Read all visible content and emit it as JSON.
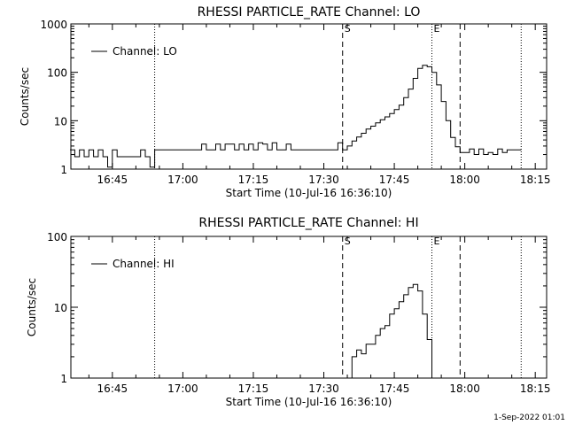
{
  "footer_date": "1-Sep-2022 01:01",
  "chart_data": [
    {
      "type": "line",
      "title": "RHESSI PARTICLE_RATE Channel: LO",
      "xlabel": "Start Time (10-Jul-16 16:36:10)",
      "ylabel": "Counts/sec",
      "yscale": "log",
      "ylim": [
        1,
        1000
      ],
      "yticks": [
        "1",
        "10",
        "100",
        "1000"
      ],
      "xticks": [
        "16:45",
        "17:00",
        "17:15",
        "17:30",
        "17:45",
        "18:00",
        "18:15"
      ],
      "legend": {
        "entry": "Channel: LO",
        "placement": "top-left"
      },
      "markers": [
        {
          "time": "16:54",
          "style": "dotted",
          "label": ""
        },
        {
          "time": "17:34",
          "style": "dashed",
          "label": "S"
        },
        {
          "time": "17:53",
          "style": "dotted",
          "label": "E"
        },
        {
          "time": "17:59",
          "style": "dashed",
          "label": ""
        },
        {
          "time": "18:12",
          "style": "dotted",
          "label": ""
        }
      ],
      "series": [
        {
          "x": [
            "16:36",
            "16:37",
            "16:38",
            "16:39",
            "16:40",
            "16:41",
            "16:42",
            "16:43",
            "16:44",
            "16:45",
            "16:46",
            "16:47",
            "16:48",
            "16:49",
            "16:50",
            "16:51",
            "16:52",
            "16:53",
            "16:54",
            "16:55",
            "16:56",
            "16:57",
            "16:58",
            "16:59",
            "17:00",
            "17:01",
            "17:02",
            "17:03",
            "17:04",
            "17:05",
            "17:06",
            "17:07",
            "17:08",
            "17:09",
            "17:10",
            "17:11",
            "17:12",
            "17:13",
            "17:14",
            "17:15",
            "17:16",
            "17:17",
            "17:18",
            "17:19",
            "17:20",
            "17:21",
            "17:22",
            "17:23",
            "17:24",
            "17:25",
            "17:26",
            "17:27",
            "17:28",
            "17:29",
            "17:30",
            "17:31",
            "17:32",
            "17:33",
            "17:34",
            "17:35",
            "17:36",
            "17:37",
            "17:38",
            "17:39",
            "17:40",
            "17:41",
            "17:42",
            "17:43",
            "17:44",
            "17:45",
            "17:46",
            "17:47",
            "17:48",
            "17:49",
            "17:50",
            "17:51",
            "17:52",
            "17:53",
            "17:54",
            "17:55",
            "17:56",
            "17:57",
            "17:58",
            "17:59",
            "18:00",
            "18:01",
            "18:02",
            "18:03",
            "18:04",
            "18:05",
            "18:06",
            "18:07",
            "18:08",
            "18:09",
            "18:10",
            "18:11",
            "18:12"
          ],
          "y": [
            2.5,
            1.8,
            2.5,
            1.8,
            2.5,
            1.8,
            2.5,
            1.8,
            1.1,
            2.5,
            1.8,
            1.8,
            1.8,
            1.8,
            1.8,
            2.5,
            1.8,
            1.1,
            2.5,
            2.5,
            2.5,
            2.5,
            2.5,
            2.5,
            2.5,
            2.5,
            2.5,
            2.5,
            3.3,
            2.5,
            2.5,
            3.3,
            2.5,
            3.3,
            3.3,
            2.5,
            3.3,
            2.5,
            3.3,
            2.5,
            3.5,
            3.3,
            2.5,
            3.5,
            2.5,
            2.5,
            3.3,
            2.5,
            2.5,
            2.5,
            2.5,
            2.5,
            2.5,
            2.5,
            2.5,
            2.5,
            2.5,
            3.5,
            2.5,
            3,
            3.8,
            4.6,
            5.5,
            6.7,
            7.7,
            9,
            10.5,
            12,
            14,
            17,
            21,
            30,
            45,
            75,
            120,
            140,
            130,
            100,
            55,
            25,
            10,
            4.5,
            2.9,
            2.2,
            2.2,
            2.6,
            2,
            2.6,
            2,
            2.2,
            2,
            2.6,
            2.2,
            2.5,
            2.5,
            2.5,
            2.5
          ]
        }
      ]
    },
    {
      "type": "line",
      "title": "RHESSI PARTICLE_RATE Channel: HI",
      "xlabel": "Start Time (10-Jul-16 16:36:10)",
      "ylabel": "Counts/sec",
      "yscale": "log",
      "ylim": [
        1,
        100
      ],
      "yticks": [
        "1",
        "10",
        "100"
      ],
      "xticks": [
        "16:45",
        "17:00",
        "17:15",
        "17:30",
        "17:45",
        "18:00",
        "18:15"
      ],
      "legend": {
        "entry": "Channel: HI",
        "placement": "top-left"
      },
      "markers": [
        {
          "time": "16:54",
          "style": "dotted",
          "label": ""
        },
        {
          "time": "17:34",
          "style": "dashed",
          "label": "S"
        },
        {
          "time": "17:53",
          "style": "dotted",
          "label": "E"
        },
        {
          "time": "17:59",
          "style": "dashed",
          "label": ""
        },
        {
          "time": "18:12",
          "style": "dotted",
          "label": ""
        }
      ],
      "series": [
        {
          "x": [
            "17:35",
            "17:36",
            "17:37",
            "17:38",
            "17:39",
            "17:40",
            "17:41",
            "17:42",
            "17:43",
            "17:44",
            "17:45",
            "17:46",
            "17:47",
            "17:48",
            "17:49",
            "17:50",
            "17:51",
            "17:52",
            "17:53"
          ],
          "y": [
            1,
            2,
            2.5,
            2.2,
            3,
            3,
            4,
            5,
            5.5,
            8,
            9.5,
            12,
            15,
            19,
            21,
            17,
            8,
            3.5,
            1
          ]
        }
      ]
    }
  ]
}
